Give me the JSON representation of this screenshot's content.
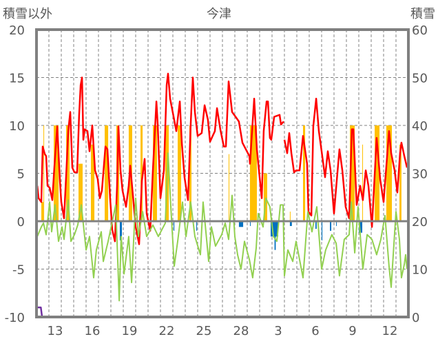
{
  "chart_data": {
    "type": "line",
    "title": "今津",
    "ylabel_left": "積雪以外",
    "ylabel_right": "積雪",
    "ylim_left": [
      -10,
      20
    ],
    "ylim_right": [
      0,
      60
    ],
    "y_ticks_left": [
      -10,
      -5,
      0,
      5,
      10,
      15,
      20
    ],
    "y_ticks_right": [
      0,
      10,
      20,
      30,
      40,
      50,
      60
    ],
    "x_unit": "days from start of window",
    "xlim": [
      0,
      30
    ],
    "x_tick_labels": [
      "13",
      "16",
      "19",
      "22",
      "25",
      "28",
      "3",
      "6",
      "9",
      "12"
    ],
    "x_tick_day_index": [
      1,
      4,
      7,
      10,
      13,
      16,
      19,
      22,
      25,
      28
    ],
    "grid": true,
    "colors": {
      "red": "#ff0000",
      "green": "#92d050",
      "yellow": "#ffc000",
      "blue": "#0070c0",
      "purple": "#7030a0",
      "axis": "#808080"
    },
    "series": [
      {
        "name": "red-line",
        "axis": "left",
        "color": "#ff0000",
        "points": [
          [
            0.06,
            3.7
          ],
          [
            0.17,
            2.4
          ],
          [
            0.39,
            2.0
          ],
          [
            0.5,
            7.8
          ],
          [
            0.67,
            7.0
          ],
          [
            0.78,
            6.8
          ],
          [
            0.89,
            3.7
          ],
          [
            1.06,
            3.5
          ],
          [
            1.28,
            2.2
          ],
          [
            1.44,
            5.6
          ],
          [
            1.67,
            9.9
          ],
          [
            1.89,
            4.2
          ],
          [
            2.0,
            2.0
          ],
          [
            2.22,
            0.3
          ],
          [
            2.44,
            6.0
          ],
          [
            2.56,
            9.4
          ],
          [
            2.72,
            11.4
          ],
          [
            2.89,
            5.6
          ],
          [
            3.06,
            5.1
          ],
          [
            3.28,
            5.1
          ],
          [
            3.44,
            11.1
          ],
          [
            3.56,
            14.2
          ],
          [
            3.67,
            15.0
          ],
          [
            3.78,
            8.5
          ],
          [
            3.89,
            9.6
          ],
          [
            4.11,
            9.4
          ],
          [
            4.28,
            7.3
          ],
          [
            4.5,
            10.0
          ],
          [
            4.72,
            5.3
          ],
          [
            4.94,
            4.4
          ],
          [
            5.11,
            2.4
          ],
          [
            5.28,
            3.2
          ],
          [
            5.56,
            7.8
          ],
          [
            5.72,
            7.5
          ],
          [
            5.94,
            2.4
          ],
          [
            6.11,
            -0.9
          ],
          [
            6.33,
            -2.1
          ],
          [
            6.5,
            3.7
          ],
          [
            6.61,
            9.9
          ],
          [
            6.78,
            5.3
          ],
          [
            6.94,
            3.2
          ],
          [
            7.22,
            1.5
          ],
          [
            7.44,
            3.7
          ],
          [
            7.56,
            5.8
          ],
          [
            7.78,
            2.7
          ],
          [
            8.0,
            -0.6
          ],
          [
            8.28,
            -2.4
          ],
          [
            8.5,
            4.2
          ],
          [
            8.72,
            6.5
          ],
          [
            8.89,
            0.8
          ],
          [
            9.17,
            -1.0
          ],
          [
            9.39,
            5.3
          ],
          [
            9.67,
            12.5
          ],
          [
            9.78,
            10.1
          ],
          [
            10.0,
            2.4
          ],
          [
            10.28,
            5.3
          ],
          [
            10.5,
            14.2
          ],
          [
            10.61,
            15.4
          ],
          [
            10.78,
            12.8
          ],
          [
            11.06,
            10.9
          ],
          [
            11.28,
            9.4
          ],
          [
            11.56,
            12.5
          ],
          [
            11.72,
            8.2
          ],
          [
            11.94,
            4.6
          ],
          [
            12.22,
            2.2
          ],
          [
            12.44,
            10.1
          ],
          [
            12.61,
            15.0
          ],
          [
            12.78,
            11.4
          ],
          [
            13.0,
            8.9
          ],
          [
            13.33,
            9.2
          ],
          [
            13.56,
            12.1
          ],
          [
            13.83,
            10.6
          ],
          [
            14.0,
            8.3
          ],
          [
            14.39,
            9.4
          ],
          [
            14.56,
            11.8
          ],
          [
            14.83,
            9.6
          ],
          [
            15.11,
            7.8
          ],
          [
            15.28,
            7.8
          ],
          [
            15.5,
            14.6
          ],
          [
            15.78,
            11.4
          ],
          [
            16.06,
            10.9
          ],
          [
            16.33,
            10.4
          ],
          [
            16.61,
            8.2
          ],
          [
            16.89,
            7.5
          ],
          [
            17.17,
            6.8
          ],
          [
            17.22,
            6.0
          ],
          [
            17.44,
            10.4
          ],
          [
            17.56,
            12.8
          ],
          [
            17.78,
            7.5
          ],
          [
            18.0,
            4.6
          ],
          [
            18.17,
            2.4
          ],
          [
            18.33,
            9.4
          ],
          [
            18.56,
            12.5
          ],
          [
            18.67,
            12.5
          ],
          [
            18.83,
            8.7
          ],
          [
            18.94,
            8.5
          ],
          [
            19.17,
            10.9
          ],
          [
            19.61,
            11.1
          ],
          [
            19.72,
            10.1
          ],
          [
            19.94,
            10.4
          ],
          null,
          [
            20.0,
            8.5
          ],
          [
            20.22,
            7.1
          ],
          [
            20.39,
            9.2
          ],
          [
            20.56,
            7.1
          ],
          [
            20.78,
            5.1
          ],
          [
            20.94,
            5.3
          ],
          [
            21.22,
            5.3
          ],
          [
            21.5,
            8.9
          ],
          [
            21.83,
            6.0
          ],
          [
            21.94,
            1.0
          ],
          [
            22.17,
            0.6
          ],
          [
            22.33,
            9.9
          ],
          [
            22.56,
            12.8
          ],
          [
            22.78,
            9.4
          ],
          [
            23.0,
            7.3
          ],
          [
            23.28,
            4.6
          ],
          [
            23.5,
            7.3
          ],
          [
            23.72,
            5.3
          ],
          [
            24.0,
            0.8
          ],
          [
            24.17,
            3.5
          ],
          [
            24.44,
            7.5
          ],
          [
            24.67,
            5.3
          ],
          [
            24.94,
            1.5
          ],
          [
            25.22,
            0.3
          ],
          [
            25.44,
            9.6
          ],
          [
            25.56,
            9.6
          ],
          [
            25.83,
            1.7
          ],
          [
            26.11,
            3.7
          ],
          [
            26.33,
            2.2
          ],
          [
            26.56,
            5.3
          ],
          [
            26.78,
            3.7
          ],
          [
            27.06,
            -0.6
          ],
          [
            27.44,
            8.7
          ],
          [
            27.72,
            4.4
          ],
          [
            28.0,
            2.0
          ],
          [
            28.44,
            9.4
          ],
          [
            28.61,
            7.1
          ],
          [
            28.89,
            5.3
          ],
          [
            29.11,
            3.0
          ],
          [
            29.33,
            7.1
          ],
          [
            29.44,
            8.2
          ],
          [
            29.67,
            6.8
          ],
          [
            29.89,
            5.6
          ]
        ]
      },
      {
        "name": "green-line",
        "axis": "left",
        "color": "#92d050",
        "points": [
          [
            0.06,
            -1.6
          ],
          [
            0.39,
            -0.6
          ],
          [
            0.56,
            -0.2
          ],
          [
            0.78,
            -1.4
          ],
          [
            1.06,
            2.0
          ],
          [
            1.22,
            -1.1
          ],
          [
            1.5,
            1.7
          ],
          [
            1.78,
            -2.1
          ],
          [
            2.06,
            -0.6
          ],
          [
            2.22,
            -1.9
          ],
          [
            2.56,
            2.2
          ],
          [
            2.78,
            -2.1
          ],
          [
            3.06,
            -1.4
          ],
          [
            3.33,
            -0.4
          ],
          [
            3.61,
            1.7
          ],
          [
            4.0,
            -3.0
          ],
          [
            4.28,
            -1.6
          ],
          [
            4.61,
            -5.9
          ],
          [
            4.83,
            -3.0
          ],
          [
            5.22,
            -1.1
          ],
          [
            5.39,
            -4.2
          ],
          [
            5.78,
            -2.1
          ],
          [
            5.94,
            -1.1
          ],
          [
            6.39,
            1.7
          ],
          [
            6.67,
            -8.3
          ],
          [
            6.83,
            -1.6
          ],
          [
            7.06,
            -5.5
          ],
          [
            7.44,
            -1.6
          ],
          [
            7.67,
            -6.4
          ],
          [
            8.0,
            2.4
          ],
          [
            8.22,
            -1.6
          ],
          [
            8.56,
            1.0
          ],
          [
            8.89,
            -1.6
          ],
          [
            9.39,
            -0.4
          ],
          [
            9.83,
            -1.6
          ],
          [
            10.39,
            -0.2
          ],
          [
            10.61,
            7.1
          ],
          [
            10.83,
            1.7
          ],
          [
            11.11,
            -4.7
          ],
          [
            11.39,
            -2.1
          ],
          [
            11.78,
            2.0
          ],
          [
            12.06,
            -1.6
          ],
          [
            12.44,
            2.0
          ],
          [
            12.78,
            -1.6
          ],
          [
            13.22,
            -3.5
          ],
          [
            13.44,
            2.0
          ],
          [
            13.89,
            -4.2
          ],
          [
            14.11,
            -0.6
          ],
          [
            14.44,
            -2.6
          ],
          [
            14.94,
            -1.4
          ],
          [
            15.22,
            -0.2
          ],
          [
            15.5,
            -1.9
          ],
          [
            15.78,
            2.7
          ],
          [
            16.0,
            -1.6
          ],
          [
            16.22,
            -3.5
          ],
          [
            16.5,
            -5.0
          ],
          [
            16.78,
            -2.1
          ],
          [
            17.17,
            -4.0
          ],
          [
            17.44,
            -5.9
          ],
          [
            17.72,
            -2.8
          ],
          [
            17.89,
            0.8
          ],
          [
            18.28,
            -0.6
          ],
          [
            18.5,
            2.4
          ],
          [
            18.83,
            1.5
          ],
          [
            19.11,
            -1.6
          ],
          [
            19.39,
            -2.1
          ],
          [
            19.67,
            1.7
          ],
          [
            19.89,
            1.7
          ],
          [
            20.0,
            -5.7
          ],
          [
            20.28,
            -3.0
          ],
          [
            20.67,
            -4.2
          ],
          [
            20.94,
            -2.1
          ],
          [
            21.5,
            -5.9
          ],
          [
            21.89,
            1.0
          ],
          [
            22.22,
            -1.1
          ],
          [
            22.61,
            1.5
          ],
          [
            23.0,
            -5.0
          ],
          [
            23.33,
            -3.0
          ],
          [
            23.83,
            -1.4
          ],
          [
            24.17,
            -2.3
          ],
          [
            24.44,
            -5.7
          ],
          [
            24.83,
            -1.9
          ],
          [
            25.22,
            -1.4
          ],
          [
            25.39,
            2.0
          ],
          [
            25.67,
            -3.3
          ],
          [
            25.94,
            1.5
          ],
          [
            26.33,
            -5.0
          ],
          [
            26.67,
            -1.4
          ],
          [
            27.06,
            -1.9
          ],
          [
            27.44,
            -3.5
          ],
          [
            27.78,
            -1.9
          ],
          [
            28.11,
            0.6
          ],
          [
            28.44,
            -4.7
          ],
          [
            28.61,
            -6.9
          ],
          [
            29.0,
            1.0
          ],
          [
            29.28,
            -1.9
          ],
          [
            29.44,
            -5.9
          ],
          [
            29.67,
            -4.5
          ],
          [
            29.78,
            -3.5
          ],
          [
            29.89,
            -5.0
          ]
        ]
      },
      {
        "name": "purple-line",
        "axis": "right",
        "color": "#7030a0",
        "points": [
          [
            0,
            2
          ],
          [
            0.35,
            2
          ],
          [
            0.45,
            0
          ],
          [
            30,
            0
          ]
        ]
      }
    ],
    "bars": [
      {
        "name": "yellow-bars",
        "axis": "left",
        "color": "#ffc000",
        "spans": [
          [
            0.39,
            0.56,
            2
          ],
          [
            0.56,
            0.6,
            10
          ],
          [
            1.39,
            1.78,
            10
          ],
          [
            2.39,
            2.67,
            10
          ],
          [
            3.39,
            3.72,
            6
          ],
          [
            4.39,
            4.67,
            8
          ],
          [
            5.5,
            5.78,
            10
          ],
          [
            6.44,
            6.67,
            10
          ],
          [
            7.44,
            7.72,
            10
          ],
          [
            8.39,
            8.56,
            10
          ],
          [
            9.39,
            9.72,
            10
          ],
          [
            10.39,
            10.67,
            10
          ],
          [
            11.39,
            11.67,
            10
          ],
          [
            12.33,
            12.5,
            10
          ],
          [
            15.5,
            15.55,
            7
          ],
          [
            17.22,
            17.78,
            10
          ],
          [
            18.33,
            18.61,
            5
          ],
          [
            20.44,
            20.48,
            1
          ],
          [
            21.5,
            21.67,
            10
          ],
          [
            25.28,
            25.67,
            10
          ],
          [
            26.28,
            26.33,
            8
          ],
          [
            27.28,
            27.67,
            10
          ],
          [
            28.22,
            28.67,
            10
          ],
          [
            29.28,
            29.44,
            8
          ]
        ]
      },
      {
        "name": "blue-bars",
        "axis": "left",
        "color": "#0070c0",
        "spans": [
          [
            6.72,
            6.89,
            -2.0
          ],
          [
            11.06,
            11.12,
            -1.0
          ],
          [
            12.89,
            12.95,
            -1.0
          ],
          [
            16.33,
            16.67,
            -0.6
          ],
          [
            17.22,
            17.28,
            -0.5
          ],
          [
            18.89,
            19.5,
            -1.6
          ],
          [
            19.2,
            19.3,
            -3.0
          ],
          [
            20.44,
            20.6,
            -0.5
          ],
          [
            22.5,
            22.6,
            -0.8
          ],
          [
            23.0,
            23.06,
            -2.0
          ],
          [
            23.67,
            23.78,
            -1.0
          ],
          [
            24.17,
            24.22,
            -0.5
          ],
          [
            26.0,
            26.28,
            -1.2
          ]
        ]
      }
    ]
  }
}
